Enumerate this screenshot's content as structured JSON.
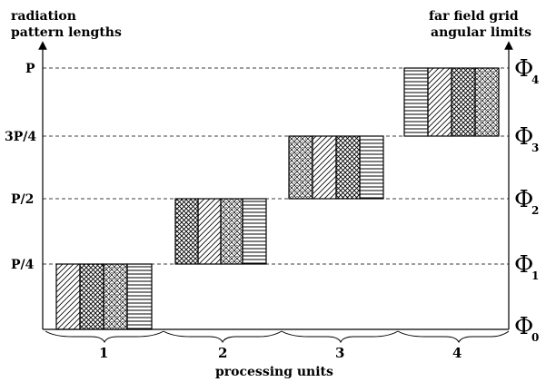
{
  "left_axis": {
    "title_line1": "radiation",
    "title_line2": "pattern lengths",
    "ticks": [
      "P",
      "3P/4",
      "P/2",
      "P/4"
    ]
  },
  "right_axis": {
    "title_line1": "far field grid",
    "title_line2": "angular limits",
    "phi_symbol": "Φ",
    "subscripts": [
      "4",
      "3",
      "2",
      "1",
      "0"
    ]
  },
  "x_axis": {
    "label": "processing units",
    "units": [
      "1",
      "2",
      "3",
      "4"
    ]
  },
  "levels": {
    "unit_1": {
      "from": 0,
      "to": 0.25
    },
    "unit_2": {
      "from": 0.25,
      "to": 0.5
    },
    "unit_3": {
      "from": 0.5,
      "to": 0.75
    },
    "unit_4": {
      "from": 0.75,
      "to": 1.0
    }
  },
  "block_patterns": {
    "unit_1": [
      "diagonal-hatch",
      "crosshatch",
      "dotted-crosshatch",
      "horizontal-lines"
    ],
    "unit_2": [
      "crosshatch",
      "diagonal-hatch",
      "dotted-crosshatch",
      "horizontal-lines"
    ],
    "unit_3": [
      "dotted-crosshatch",
      "diagonal-hatch",
      "crosshatch",
      "horizontal-lines"
    ],
    "unit_4": [
      "horizontal-lines",
      "diagonal-hatch",
      "crosshatch",
      "dotted-crosshatch"
    ]
  }
}
